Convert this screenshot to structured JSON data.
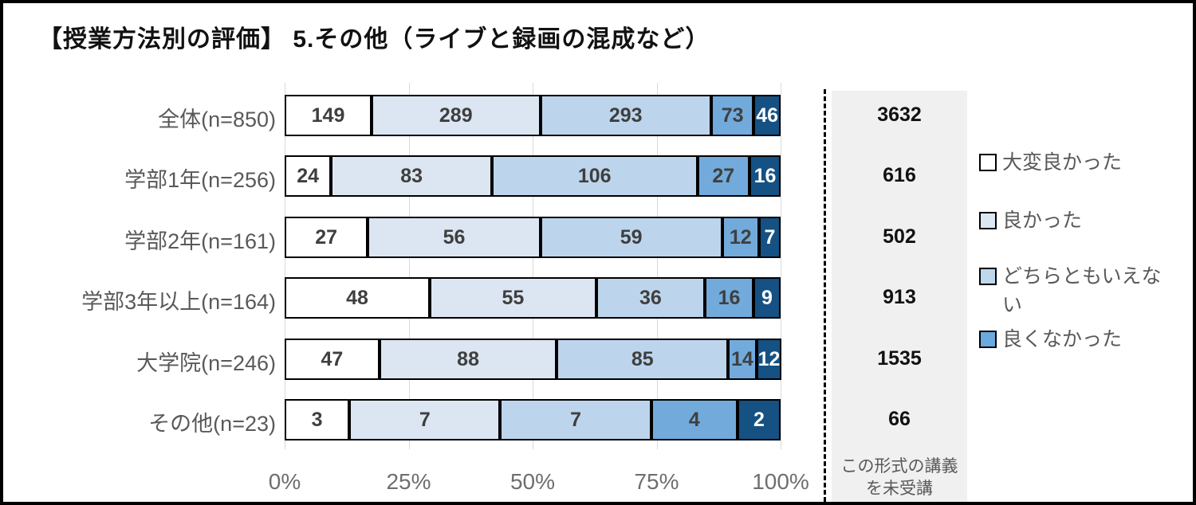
{
  "title": "【授業方法別の評価】 5.その他（ライブと録画の混成など）",
  "panel": {
    "values": [
      "3632",
      "616",
      "502",
      "913",
      "1535",
      "66"
    ],
    "footnote_line1": "この形式の講義",
    "footnote_line2": "を未受講"
  },
  "legend": {
    "items": [
      {
        "label": "大変良かった",
        "color": "#ffffff"
      },
      {
        "label": "良かった",
        "color": "#dbe8f4"
      },
      {
        "label": "どちらともいえない",
        "color": "#bdd7ec"
      },
      {
        "label": "良くなかった",
        "color": "#6aaade"
      }
    ]
  },
  "colors": {
    "segment_border": "#000000",
    "segment_label": "#3f3f3f",
    "segment_label_on_dark": "#ffffff",
    "grid": "#d9d9d9",
    "axis_text": "#6e6e6e",
    "row_label_text": "#595959",
    "panel_bg": "#f0f0f0"
  },
  "chart_data": {
    "type": "bar",
    "subtype": "horizontal-stacked-100percent",
    "title": "【授業方法別の評価】 5.その他（ライブと録画の混成など）",
    "categories": [
      "全体(n=850)",
      "学部1年(n=256)",
      "学部2年(n=161)",
      "学部3年以上(n=164)",
      "大学院(n=246)",
      "その他(n=23)"
    ],
    "series": [
      {
        "name": "大変良かった",
        "color": "#ffffff",
        "values": [
          149,
          24,
          27,
          48,
          47,
          3
        ]
      },
      {
        "name": "良かった",
        "color": "#dbe6f2",
        "values": [
          289,
          83,
          56,
          55,
          88,
          7
        ]
      },
      {
        "name": "どちらともいえない",
        "color": "#bdd5ec",
        "values": [
          293,
          106,
          59,
          36,
          85,
          7
        ]
      },
      {
        "name": "良くなかった",
        "color": "#72aadc",
        "values": [
          73,
          27,
          12,
          16,
          14,
          4
        ]
      },
      {
        "name": "",
        "color": "#155183",
        "values": [
          46,
          16,
          7,
          9,
          12,
          2
        ]
      }
    ],
    "x_ticks": [
      "0%",
      "25%",
      "50%",
      "75%",
      "100%"
    ],
    "x_range": [
      0,
      100
    ],
    "grid": true,
    "legend_position": "right",
    "unreceived_values": [
      3632,
      616,
      502,
      913,
      1535,
      66
    ],
    "unreceived_label": "この形式の講義を未受講"
  }
}
